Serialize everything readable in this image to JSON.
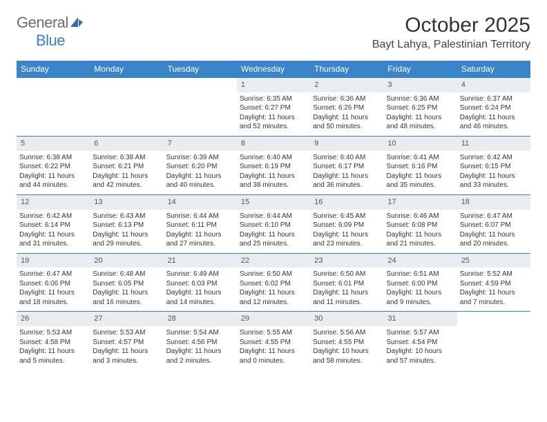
{
  "logo": {
    "general": "General",
    "blue": "Blue"
  },
  "title": "October 2025",
  "location": "Bayt Lahya, Palestinian Territory",
  "colors": {
    "header_bg": "#3a85c9",
    "row_border": "#3a7fb8",
    "daynum_bg": "#e9edf0",
    "logo_gray": "#6b6b6b",
    "logo_blue": "#3a7fc4"
  },
  "day_names": [
    "Sunday",
    "Monday",
    "Tuesday",
    "Wednesday",
    "Thursday",
    "Friday",
    "Saturday"
  ],
  "weeks": [
    [
      {
        "n": "",
        "sr": "",
        "ss": "",
        "dl": ""
      },
      {
        "n": "",
        "sr": "",
        "ss": "",
        "dl": ""
      },
      {
        "n": "",
        "sr": "",
        "ss": "",
        "dl": ""
      },
      {
        "n": "1",
        "sr": "Sunrise: 6:35 AM",
        "ss": "Sunset: 6:27 PM",
        "dl": "Daylight: 11 hours and 52 minutes."
      },
      {
        "n": "2",
        "sr": "Sunrise: 6:36 AM",
        "ss": "Sunset: 6:26 PM",
        "dl": "Daylight: 11 hours and 50 minutes."
      },
      {
        "n": "3",
        "sr": "Sunrise: 6:36 AM",
        "ss": "Sunset: 6:25 PM",
        "dl": "Daylight: 11 hours and 48 minutes."
      },
      {
        "n": "4",
        "sr": "Sunrise: 6:37 AM",
        "ss": "Sunset: 6:24 PM",
        "dl": "Daylight: 11 hours and 46 minutes."
      }
    ],
    [
      {
        "n": "5",
        "sr": "Sunrise: 6:38 AM",
        "ss": "Sunset: 6:22 PM",
        "dl": "Daylight: 11 hours and 44 minutes."
      },
      {
        "n": "6",
        "sr": "Sunrise: 6:38 AM",
        "ss": "Sunset: 6:21 PM",
        "dl": "Daylight: 11 hours and 42 minutes."
      },
      {
        "n": "7",
        "sr": "Sunrise: 6:39 AM",
        "ss": "Sunset: 6:20 PM",
        "dl": "Daylight: 11 hours and 40 minutes."
      },
      {
        "n": "8",
        "sr": "Sunrise: 6:40 AM",
        "ss": "Sunset: 6:19 PM",
        "dl": "Daylight: 11 hours and 38 minutes."
      },
      {
        "n": "9",
        "sr": "Sunrise: 6:40 AM",
        "ss": "Sunset: 6:17 PM",
        "dl": "Daylight: 11 hours and 36 minutes."
      },
      {
        "n": "10",
        "sr": "Sunrise: 6:41 AM",
        "ss": "Sunset: 6:16 PM",
        "dl": "Daylight: 11 hours and 35 minutes."
      },
      {
        "n": "11",
        "sr": "Sunrise: 6:42 AM",
        "ss": "Sunset: 6:15 PM",
        "dl": "Daylight: 11 hours and 33 minutes."
      }
    ],
    [
      {
        "n": "12",
        "sr": "Sunrise: 6:42 AM",
        "ss": "Sunset: 6:14 PM",
        "dl": "Daylight: 11 hours and 31 minutes."
      },
      {
        "n": "13",
        "sr": "Sunrise: 6:43 AM",
        "ss": "Sunset: 6:13 PM",
        "dl": "Daylight: 11 hours and 29 minutes."
      },
      {
        "n": "14",
        "sr": "Sunrise: 6:44 AM",
        "ss": "Sunset: 6:11 PM",
        "dl": "Daylight: 11 hours and 27 minutes."
      },
      {
        "n": "15",
        "sr": "Sunrise: 6:44 AM",
        "ss": "Sunset: 6:10 PM",
        "dl": "Daylight: 11 hours and 25 minutes."
      },
      {
        "n": "16",
        "sr": "Sunrise: 6:45 AM",
        "ss": "Sunset: 6:09 PM",
        "dl": "Daylight: 11 hours and 23 minutes."
      },
      {
        "n": "17",
        "sr": "Sunrise: 6:46 AM",
        "ss": "Sunset: 6:08 PM",
        "dl": "Daylight: 11 hours and 21 minutes."
      },
      {
        "n": "18",
        "sr": "Sunrise: 6:47 AM",
        "ss": "Sunset: 6:07 PM",
        "dl": "Daylight: 11 hours and 20 minutes."
      }
    ],
    [
      {
        "n": "19",
        "sr": "Sunrise: 6:47 AM",
        "ss": "Sunset: 6:06 PM",
        "dl": "Daylight: 11 hours and 18 minutes."
      },
      {
        "n": "20",
        "sr": "Sunrise: 6:48 AM",
        "ss": "Sunset: 6:05 PM",
        "dl": "Daylight: 11 hours and 16 minutes."
      },
      {
        "n": "21",
        "sr": "Sunrise: 6:49 AM",
        "ss": "Sunset: 6:03 PM",
        "dl": "Daylight: 11 hours and 14 minutes."
      },
      {
        "n": "22",
        "sr": "Sunrise: 6:50 AM",
        "ss": "Sunset: 6:02 PM",
        "dl": "Daylight: 11 hours and 12 minutes."
      },
      {
        "n": "23",
        "sr": "Sunrise: 6:50 AM",
        "ss": "Sunset: 6:01 PM",
        "dl": "Daylight: 11 hours and 11 minutes."
      },
      {
        "n": "24",
        "sr": "Sunrise: 6:51 AM",
        "ss": "Sunset: 6:00 PM",
        "dl": "Daylight: 11 hours and 9 minutes."
      },
      {
        "n": "25",
        "sr": "Sunrise: 5:52 AM",
        "ss": "Sunset: 4:59 PM",
        "dl": "Daylight: 11 hours and 7 minutes."
      }
    ],
    [
      {
        "n": "26",
        "sr": "Sunrise: 5:53 AM",
        "ss": "Sunset: 4:58 PM",
        "dl": "Daylight: 11 hours and 5 minutes."
      },
      {
        "n": "27",
        "sr": "Sunrise: 5:53 AM",
        "ss": "Sunset: 4:57 PM",
        "dl": "Daylight: 11 hours and 3 minutes."
      },
      {
        "n": "28",
        "sr": "Sunrise: 5:54 AM",
        "ss": "Sunset: 4:56 PM",
        "dl": "Daylight: 11 hours and 2 minutes."
      },
      {
        "n": "29",
        "sr": "Sunrise: 5:55 AM",
        "ss": "Sunset: 4:55 PM",
        "dl": "Daylight: 11 hours and 0 minutes."
      },
      {
        "n": "30",
        "sr": "Sunrise: 5:56 AM",
        "ss": "Sunset: 4:55 PM",
        "dl": "Daylight: 10 hours and 58 minutes."
      },
      {
        "n": "31",
        "sr": "Sunrise: 5:57 AM",
        "ss": "Sunset: 4:54 PM",
        "dl": "Daylight: 10 hours and 57 minutes."
      },
      {
        "n": "",
        "sr": "",
        "ss": "",
        "dl": ""
      }
    ]
  ]
}
